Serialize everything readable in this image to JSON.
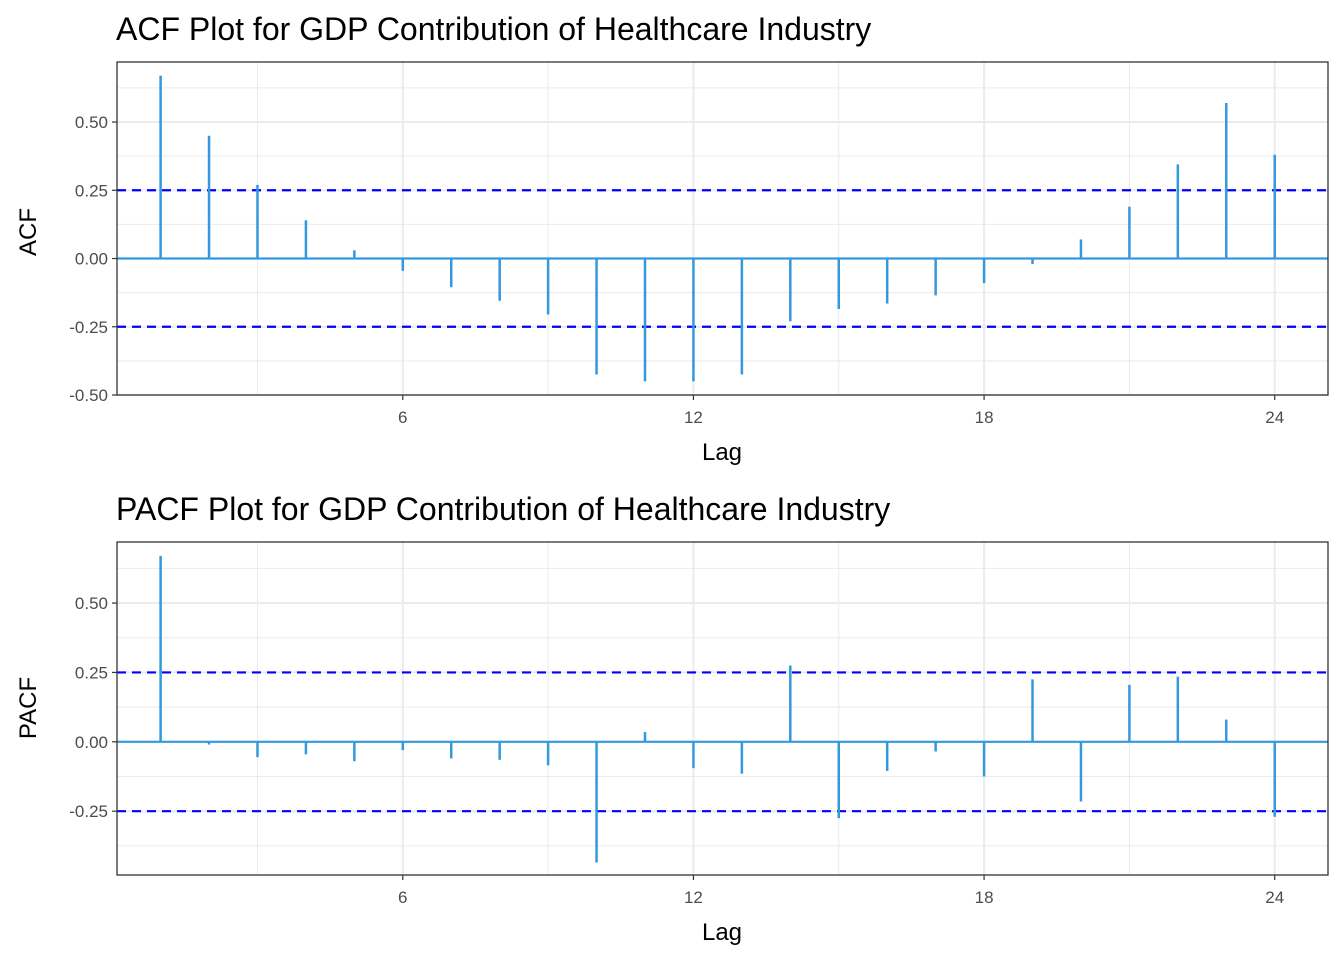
{
  "chart_data": [
    {
      "type": "bar",
      "title": "ACF Plot for GDP Contribution of Healthcare Industry",
      "xlabel": "Lag",
      "ylabel": "ACF",
      "xlim": [
        0.1,
        25.1
      ],
      "ylim": [
        -0.5,
        0.72
      ],
      "x_ticks": [
        "6",
        "12",
        "18",
        "24"
      ],
      "y_ticks": [
        "0.50",
        "0.25",
        "0.00",
        "-0.25",
        "-0.50"
      ],
      "confidence_bounds": [
        0.25,
        -0.25
      ],
      "grid": true,
      "lags": [
        1,
        2,
        3,
        4,
        5,
        6,
        7,
        8,
        9,
        10,
        11,
        12,
        13,
        14,
        15,
        16,
        17,
        18,
        19,
        20,
        21,
        22,
        23,
        24
      ],
      "values": [
        0.67,
        0.45,
        0.27,
        0.14,
        0.03,
        -0.045,
        -0.105,
        -0.155,
        -0.205,
        -0.425,
        -0.45,
        -0.45,
        -0.425,
        -0.23,
        -0.185,
        -0.165,
        -0.135,
        -0.09,
        -0.02,
        0.07,
        0.19,
        0.345,
        0.57,
        0.38
      ]
    },
    {
      "type": "bar",
      "title": "PACF Plot for GDP Contribution of Healthcare Industry",
      "xlabel": "Lag",
      "ylabel": "PACF",
      "xlim": [
        0.1,
        25.1
      ],
      "ylim": [
        -0.48,
        0.72
      ],
      "x_ticks": [
        "6",
        "12",
        "18",
        "24"
      ],
      "y_ticks": [
        "0.50",
        "0.25",
        "0.00",
        "-0.25"
      ],
      "confidence_bounds": [
        0.25,
        -0.25
      ],
      "grid": true,
      "lags": [
        1,
        2,
        3,
        4,
        5,
        6,
        7,
        8,
        9,
        10,
        11,
        12,
        13,
        14,
        15,
        16,
        17,
        18,
        19,
        20,
        21,
        22,
        23,
        24
      ],
      "values": [
        0.67,
        -0.01,
        -0.055,
        -0.045,
        -0.07,
        -0.03,
        -0.06,
        -0.065,
        -0.085,
        -0.435,
        0.035,
        -0.095,
        -0.115,
        0.275,
        -0.275,
        -0.105,
        -0.035,
        -0.125,
        0.225,
        -0.215,
        0.205,
        0.235,
        0.08,
        -0.27
      ]
    }
  ],
  "colors": {
    "bar": "#3399dd",
    "bound": "#0000ff",
    "zero_line": "#3399dd",
    "grid": "#ebebeb",
    "panel_border": "#333333"
  }
}
